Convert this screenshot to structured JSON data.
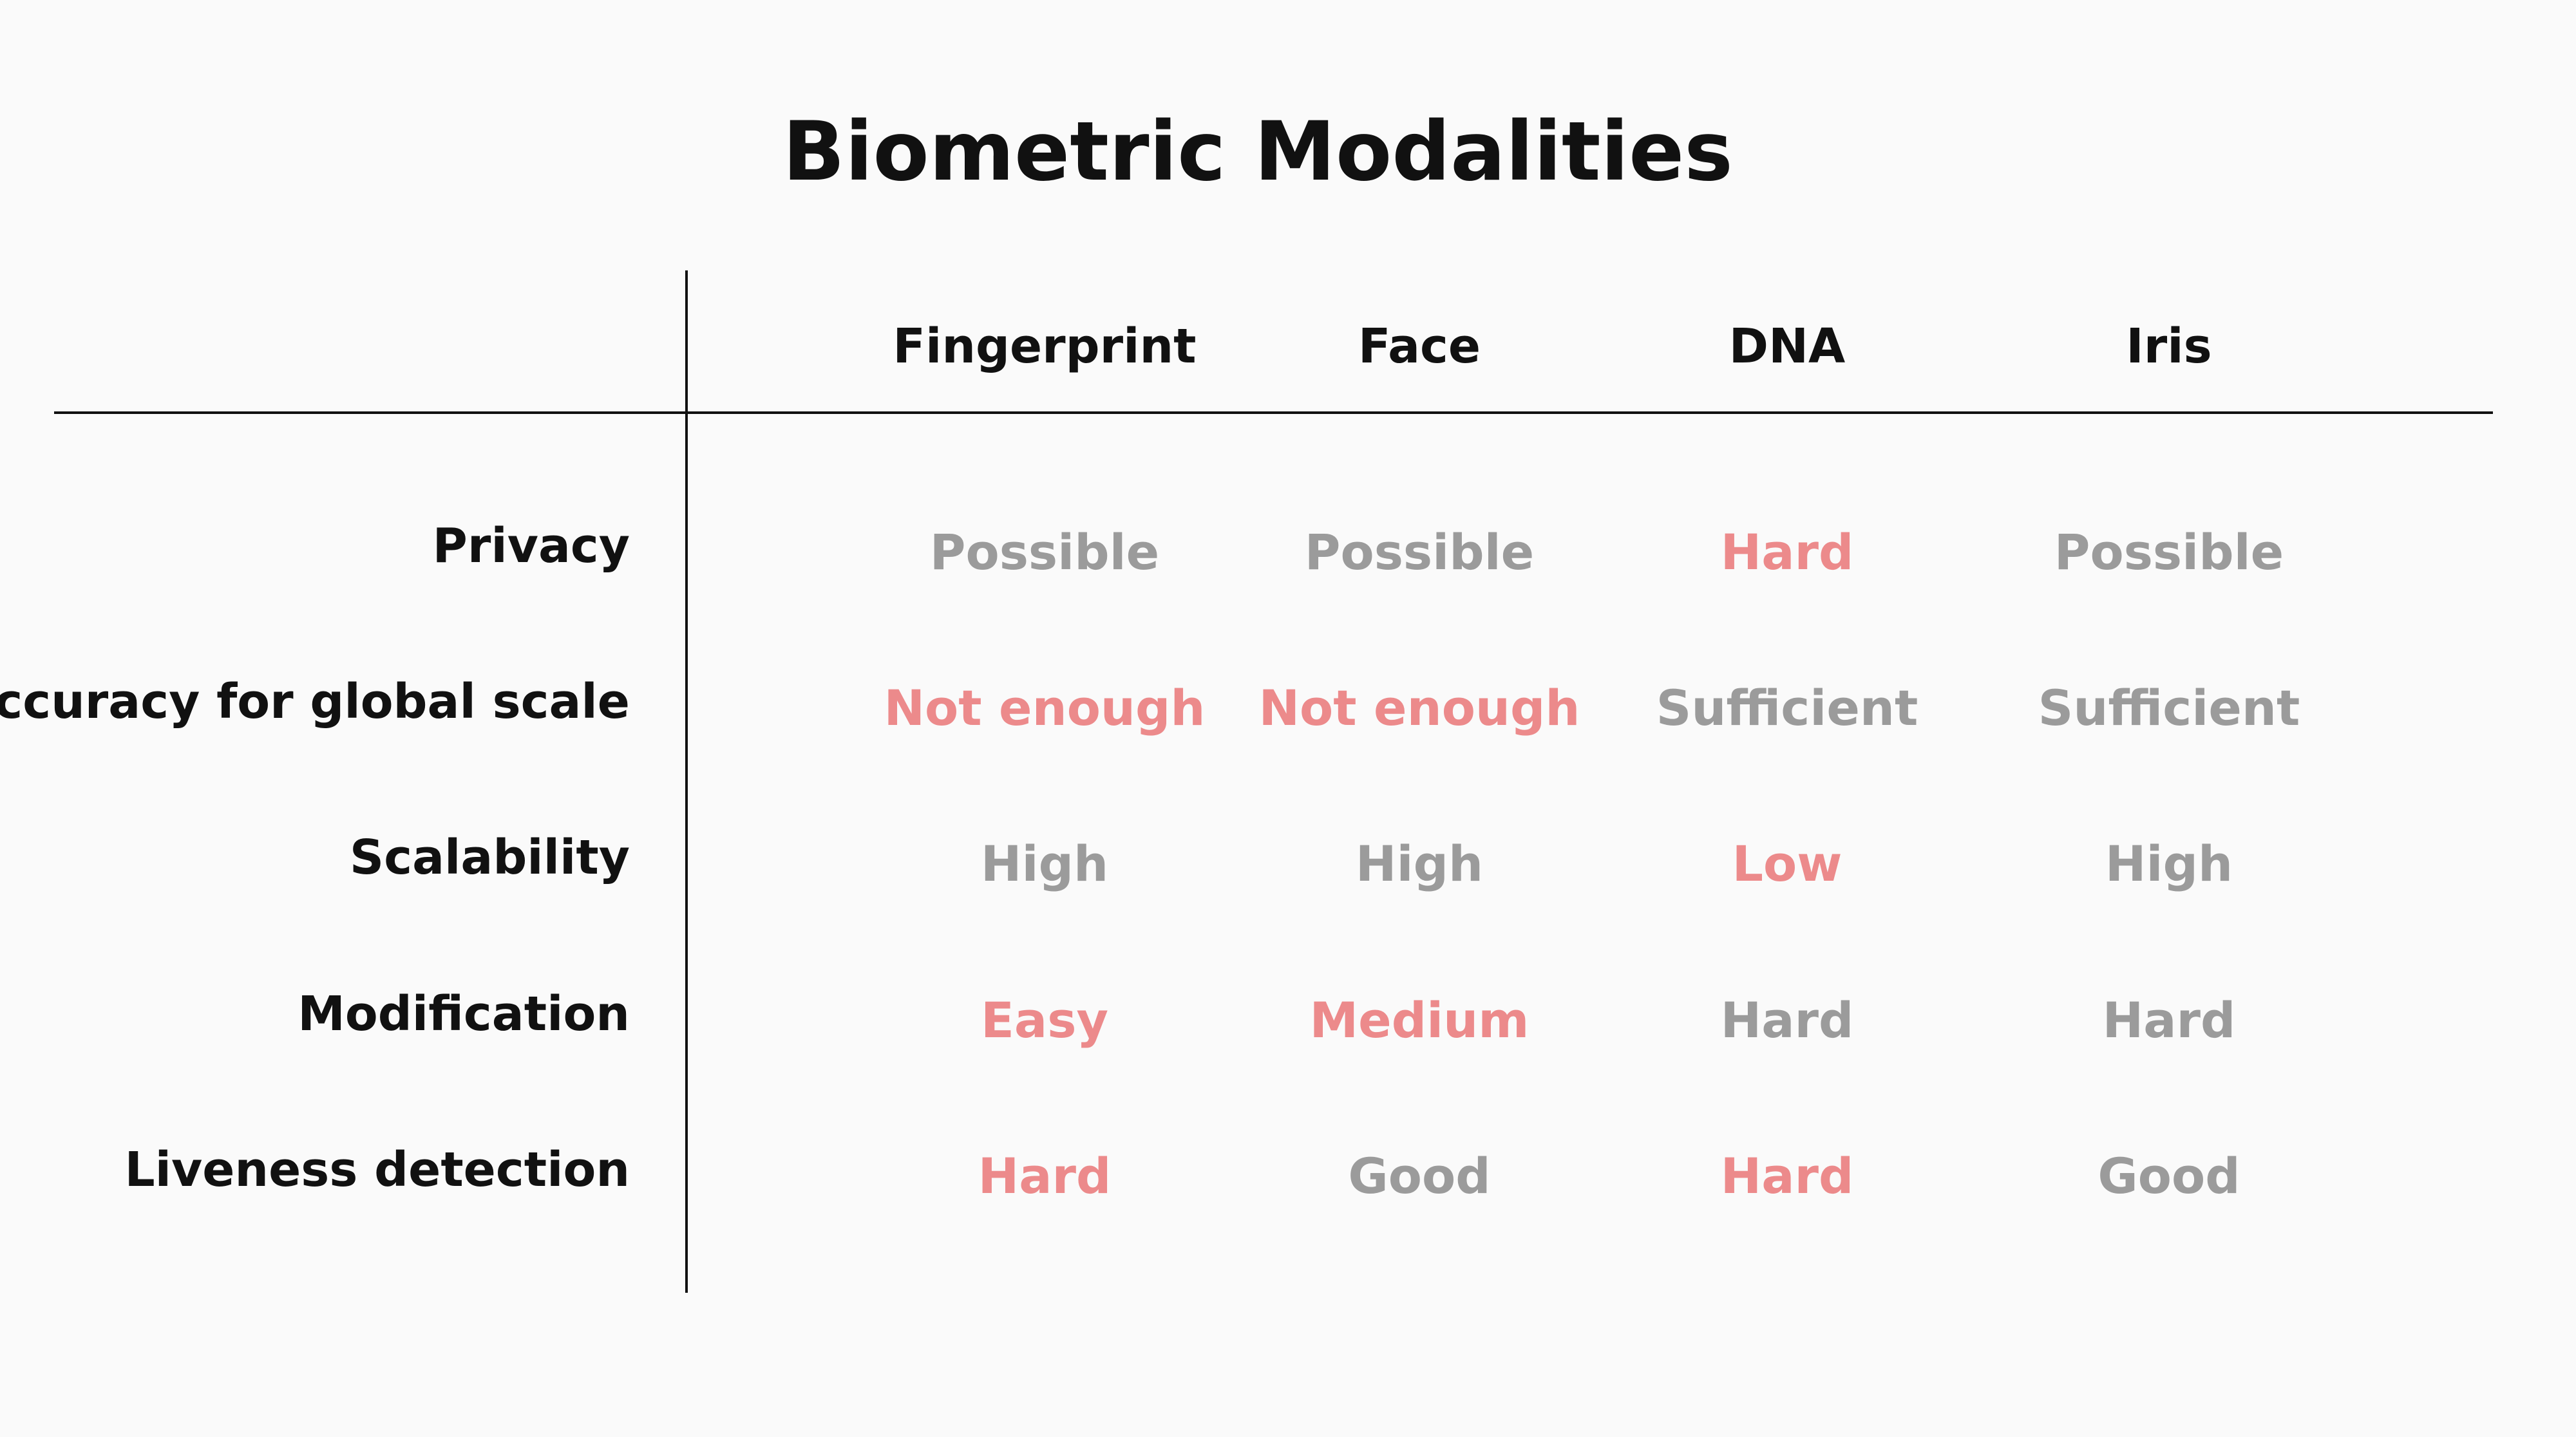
{
  "title": "Biometric Modalities",
  "colors": {
    "negative": "#ec8a8b",
    "neutral": "#9b9b9b",
    "text": "#111111",
    "background": "#fafafa"
  },
  "columns": [
    "Fingerprint",
    "Face",
    "DNA",
    "Iris"
  ],
  "rows": [
    {
      "label": "Privacy",
      "cells": [
        {
          "text": "Possible",
          "tone": "neutral"
        },
        {
          "text": "Possible",
          "tone": "neutral"
        },
        {
          "text": "Hard",
          "tone": "negative"
        },
        {
          "text": "Possible",
          "tone": "neutral"
        }
      ]
    },
    {
      "label": "Accuracy for global scale",
      "cells": [
        {
          "text": "Not enough",
          "tone": "negative"
        },
        {
          "text": "Not enough",
          "tone": "negative"
        },
        {
          "text": "Sufficient",
          "tone": "neutral"
        },
        {
          "text": "Sufficient",
          "tone": "neutral"
        }
      ]
    },
    {
      "label": "Scalability",
      "cells": [
        {
          "text": "High",
          "tone": "neutral"
        },
        {
          "text": "High",
          "tone": "neutral"
        },
        {
          "text": "Low",
          "tone": "negative"
        },
        {
          "text": "High",
          "tone": "neutral"
        }
      ]
    },
    {
      "label": "Modification",
      "cells": [
        {
          "text": "Easy",
          "tone": "negative"
        },
        {
          "text": "Medium",
          "tone": "negative"
        },
        {
          "text": "Hard",
          "tone": "neutral"
        },
        {
          "text": "Hard",
          "tone": "neutral"
        }
      ]
    },
    {
      "label": "Liveness detection",
      "cells": [
        {
          "text": "Hard",
          "tone": "negative"
        },
        {
          "text": "Good",
          "tone": "neutral"
        },
        {
          "text": "Hard",
          "tone": "negative"
        },
        {
          "text": "Good",
          "tone": "neutral"
        }
      ]
    }
  ]
}
